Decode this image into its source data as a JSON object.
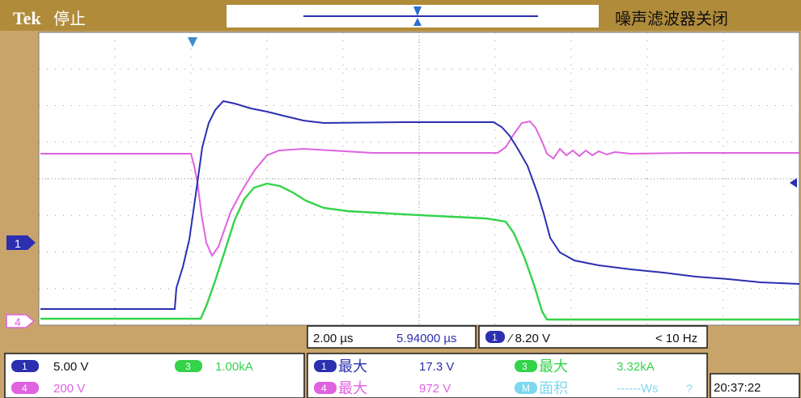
{
  "header": {
    "brand": "Tek",
    "state": "停止",
    "status_right": "噪声滤波器关闭"
  },
  "channels": {
    "ch1": {
      "label": "1",
      "scale": "5.00 V",
      "color": "#2b2fb0"
    },
    "ch3": {
      "label": "3",
      "scale": "1.00kA",
      "color": "#34d34a"
    },
    "ch4": {
      "label": "4",
      "scale": "200 V",
      "color": "#e062e0"
    },
    "math": {
      "label": "M"
    }
  },
  "markers": {
    "ch1_marker": "1",
    "ch4_marker": "4"
  },
  "timebase": {
    "scale": "2.00 µs",
    "position": "5.94000 µs"
  },
  "trigger": {
    "source": "1",
    "slope_level": "⁄ 8.20 V",
    "frequency": "< 10 Hz"
  },
  "measurements": [
    {
      "src": "1",
      "name": "最大",
      "value": "17.3 V"
    },
    {
      "src": "4",
      "name": "最大",
      "value": "972 V"
    },
    {
      "src": "3",
      "name": "最大",
      "value": "3.32kA"
    },
    {
      "src": "M",
      "name": "面积",
      "value": "------Ws",
      "flag": "?"
    }
  ],
  "clock": "20:37:22",
  "colors": {
    "bezel": "#c8a46a",
    "ch1": "#2b2fb0",
    "ch3": "#34d34a",
    "ch4": "#e062e0",
    "math": "#7fd8ef"
  }
}
